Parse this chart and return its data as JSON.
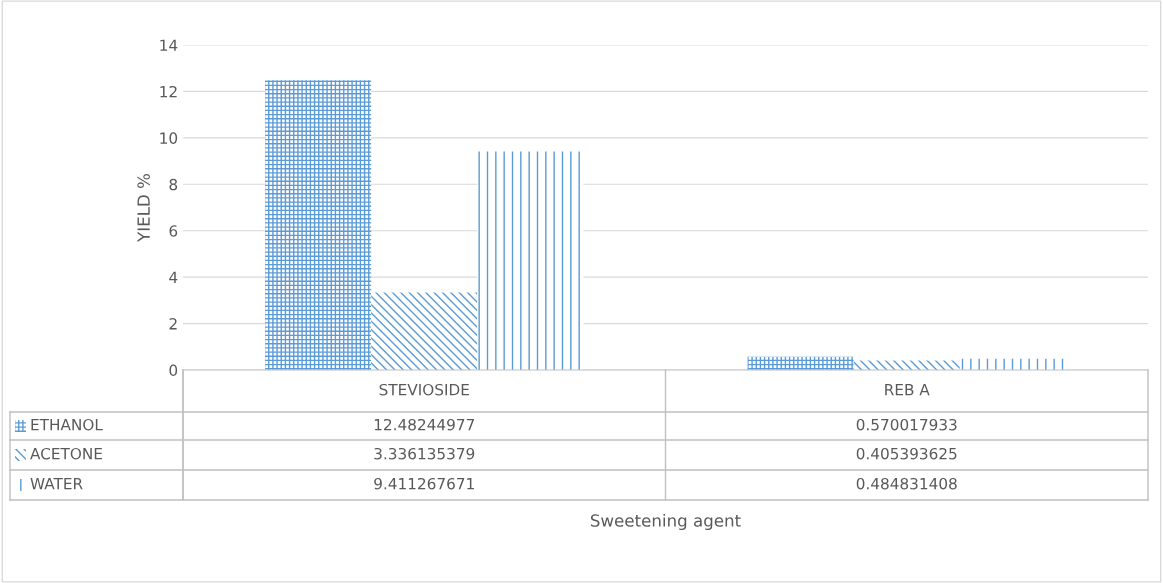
{
  "chart_data": {
    "type": "bar",
    "annotations": [
      "Sweetening agent"
    ],
    "ylabel": "YIELD %",
    "categories": [
      "STEVIOSIDE",
      "REB A"
    ],
    "series": [
      {
        "name": "ETHANOL",
        "color": "#5b9bd5",
        "values": [
          12.48244977,
          0.570017933
        ]
      },
      {
        "name": "ACETONE",
        "color": "#5b9bd5",
        "values": [
          3.336135379,
          0.405393625
        ]
      },
      {
        "name": "WATER",
        "color": "#5b9bd5",
        "values": [
          9.411267671,
          0.484831408
        ]
      }
    ],
    "ylim": [
      0,
      14
    ],
    "yticks": [
      0,
      2,
      4,
      6,
      8,
      10,
      12,
      14
    ],
    "grid": "y",
    "data_labels": true,
    "legend": "bottom left"
  }
}
